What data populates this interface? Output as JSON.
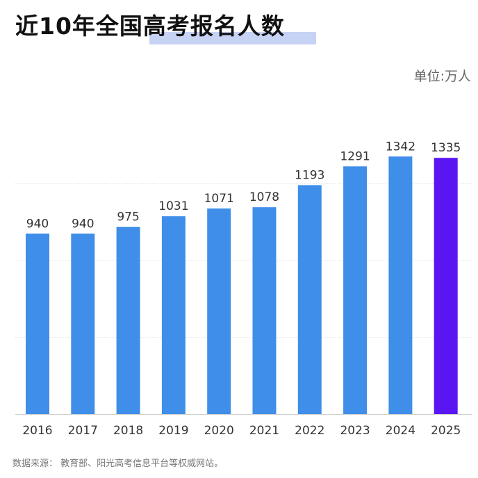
{
  "page": {
    "title": "近10年全国高考报名人数",
    "unit": "单位:万人",
    "source": "数据来源：  教育部、阳光高考信息平台等权威网站。"
  },
  "chart_data": {
    "type": "bar",
    "categories": [
      "2016",
      "2017",
      "2018",
      "2019",
      "2020",
      "2021",
      "2022",
      "2023",
      "2024",
      "2025"
    ],
    "values": [
      940,
      940,
      975,
      1031,
      1071,
      1078,
      1193,
      1291,
      1342,
      1335
    ],
    "title": "近10年全国高考报名人数",
    "xlabel": "",
    "ylabel": "单位:万人",
    "ylim": [
      0,
      1600
    ],
    "grid": true,
    "highlight_index": 9,
    "colors": {
      "bar": "#3f8ee9",
      "highlight": "#5a16f2",
      "label": "#333333",
      "grid": "#e6e6e6"
    }
  }
}
